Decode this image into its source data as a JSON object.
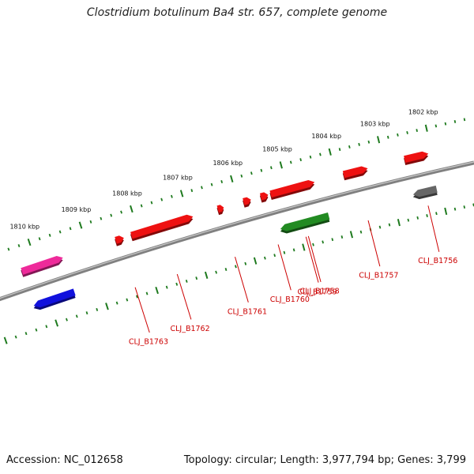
{
  "title": "Clostridium botulinum Ba4 str. 657, complete genome",
  "footer": {
    "accession": "Accession: NC_012658",
    "stats": "Topology: circular; Length: 3,977,794 bp; Genes: 3,799"
  },
  "colors": {
    "backbone": "#808080",
    "tick": "#1e7a1e",
    "label": "#cc0000",
    "gene_red": "#ee1111",
    "gene_green": "#228b22",
    "gene_gray": "#666666",
    "gene_pink": "#ee2a9a",
    "gene_blue": "#1111dd"
  },
  "scale": {
    "unit": "kbp",
    "marks": [
      {
        "kbp": 1802,
        "label": "1802 kbp"
      },
      {
        "kbp": 1803,
        "label": "1803 kbp"
      },
      {
        "kbp": 1804,
        "label": "1804 kbp"
      },
      {
        "kbp": 1805,
        "label": "1805 kbp"
      },
      {
        "kbp": 1806,
        "label": "1806 kbp"
      },
      {
        "kbp": 1807,
        "label": "1807 kbp"
      },
      {
        "kbp": 1808,
        "label": "1808 kbp"
      },
      {
        "kbp": 1809,
        "label": "1809 kbp"
      },
      {
        "kbp": 1810,
        "label": "1810 kbp"
      }
    ]
  },
  "features": [
    {
      "start": 1802.08,
      "end": 1802.58,
      "strand": "+",
      "color": "gene_red",
      "label": ""
    },
    {
      "start": 1802.08,
      "end": 1802.58,
      "strand": "-",
      "color": "gene_gray",
      "label": "CLJ_B1756"
    },
    {
      "start": 1803.35,
      "end": 1803.85,
      "strand": "+",
      "color": "gene_red",
      "label": "CLJ_B1757"
    },
    {
      "start": 1804.35,
      "end": 1805.35,
      "strand": "-",
      "color": "gene_green",
      "label": "CLJ_B1758"
    },
    {
      "start": 1804.45,
      "end": 1805.35,
      "strand": "+",
      "color": "gene_red",
      "label": "CLJ_B1759"
    },
    {
      "start": 1805.4,
      "end": 1805.55,
      "strand": "+",
      "color": "gene_red",
      "label": "CLJ_B1760"
    },
    {
      "start": 1805.75,
      "end": 1805.9,
      "strand": "+",
      "color": "gene_red",
      "label": ""
    },
    {
      "start": 1806.3,
      "end": 1806.42,
      "strand": "+",
      "color": "gene_red",
      "label": "CLJ_B1761"
    },
    {
      "start": 1806.92,
      "end": 1808.15,
      "strand": "+",
      "color": "gene_red",
      "label": "CLJ_B1762"
    },
    {
      "start": 1808.3,
      "end": 1808.46,
      "strand": "+",
      "color": "gene_red",
      "label": "CLJ_B1763"
    },
    {
      "start": 1809.5,
      "end": 1810.3,
      "strand": "+",
      "color": "gene_pink",
      "label": ""
    },
    {
      "start": 1809.5,
      "end": 1810.3,
      "strand": "-",
      "color": "gene_blue",
      "label": ""
    }
  ]
}
